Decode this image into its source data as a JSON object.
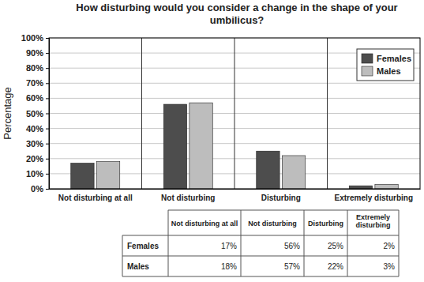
{
  "chart_data": {
    "type": "bar",
    "title": "How disturbing would you consider a change in the shape of your umbilicus?",
    "y_label": "Percentage",
    "categories": [
      "Not disturbing at all",
      "Not disturbing",
      "Disturbing",
      "Extremely disturbing"
    ],
    "series": [
      {
        "name": "Females",
        "color": "#4d4d4d",
        "values": [
          17,
          56,
          25,
          2
        ],
        "value_labels": [
          "17%",
          "56%",
          "25%",
          "2%"
        ]
      },
      {
        "name": "Males",
        "color": "#bdbdbd",
        "values": [
          18,
          57,
          22,
          3
        ],
        "value_labels": [
          "18%",
          "57%",
          "22%",
          "3%"
        ]
      }
    ],
    "ylim": [
      0,
      100
    ],
    "yticks": [
      {
        "value": 0,
        "label": "0%"
      },
      {
        "value": 10,
        "label": "10%"
      },
      {
        "value": 20,
        "label": "20%"
      },
      {
        "value": 30,
        "label": "30%"
      },
      {
        "value": 40,
        "label": "40%"
      },
      {
        "value": 50,
        "label": "50%"
      },
      {
        "value": 60,
        "label": "60%"
      },
      {
        "value": 70,
        "label": "70%"
      },
      {
        "value": 80,
        "label": "80%"
      },
      {
        "value": 90,
        "label": "90%"
      },
      {
        "value": 100,
        "label": "100%"
      }
    ],
    "grid": true,
    "legend": "upper right"
  }
}
